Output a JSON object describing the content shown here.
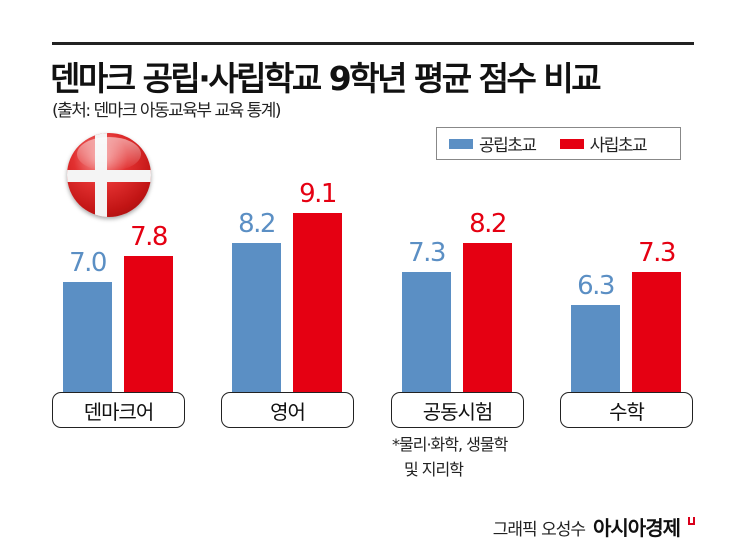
{
  "header": {
    "title": "덴마크 공립·사립학교 9학년 평균 점수 비교",
    "subtitle": "(출처: 덴마크 아동교육부 교육 통계)"
  },
  "legend": {
    "public": {
      "label": "공립초교",
      "color": "#5b8fc4"
    },
    "private": {
      "label": "사립초교",
      "color": "#e50012"
    }
  },
  "flag": {
    "icon": "denmark-flag-icon"
  },
  "footnote": {
    "line1": "*물리·화학, 생물학",
    "line2": "및 지리학"
  },
  "credit": {
    "author": "그래픽 오성수",
    "brand": "아시아경제"
  },
  "chart_data": {
    "type": "bar",
    "title": "덴마크 공립·사립학교 9학년 평균 점수 비교",
    "subtitle": "(출처: 덴마크 아동교육부 교육 통계)",
    "categories": [
      "덴마크어",
      "영어",
      "공동시험",
      "수학"
    ],
    "series": [
      {
        "name": "공립초교",
        "color": "#5b8fc4",
        "values": [
          7.0,
          8.2,
          7.3,
          6.3
        ]
      },
      {
        "name": "사립초교",
        "color": "#e50012",
        "values": [
          7.8,
          9.1,
          8.2,
          7.3
        ]
      }
    ],
    "value_labels": {
      "public": [
        "7.0",
        "8.2",
        "7.3",
        "6.3"
      ],
      "private": [
        "7.8",
        "9.1",
        "8.2",
        "7.3"
      ]
    },
    "annotations": [
      "*물리·화학, 생물학 및 지리학"
    ],
    "xlabel": "",
    "ylabel": "",
    "grid": false,
    "legend_position": "top-right"
  }
}
